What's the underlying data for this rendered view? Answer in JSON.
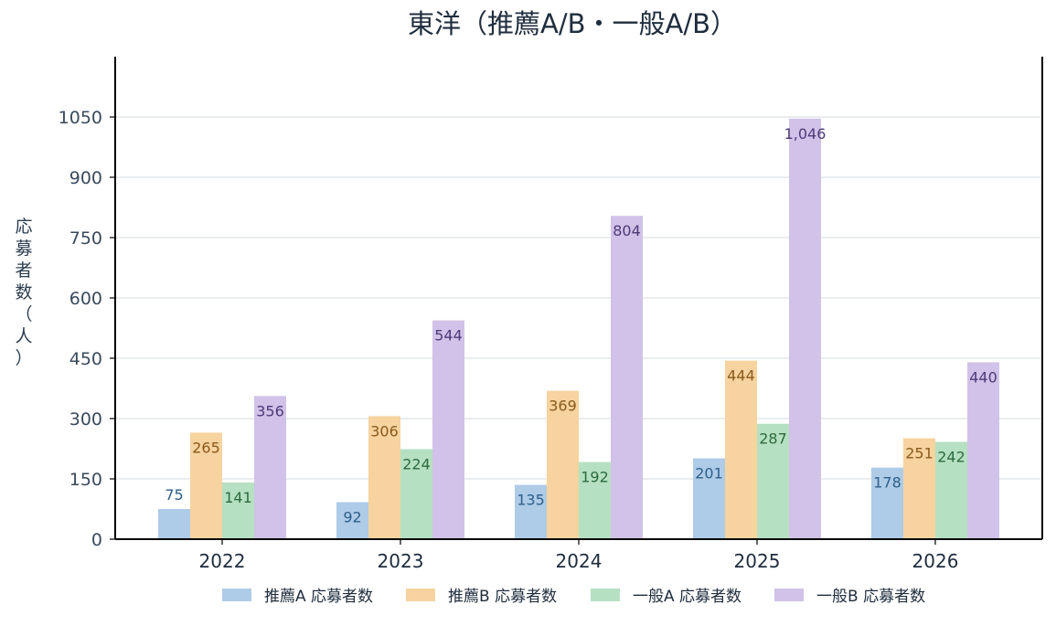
{
  "chart_data": {
    "type": "bar",
    "title": "東洋（推薦A/B・一般A/B）",
    "xlabel": "",
    "ylabel": "応募者数（人）",
    "categories": [
      "2022",
      "2023",
      "2024",
      "2025",
      "2026"
    ],
    "ylim": [
      0,
      1200
    ],
    "yticks": [
      0,
      150,
      300,
      450,
      600,
      750,
      900,
      1050
    ],
    "grid": true,
    "legend_position": "bottom",
    "series": [
      {
        "name": "推薦A 応募者数",
        "values": [
          75,
          92,
          135,
          201,
          178
        ],
        "labels": [
          "75",
          "92",
          "135",
          "201",
          "178"
        ],
        "color": "#aecbe8",
        "label_color": "#2e5f88"
      },
      {
        "name": "推薦B 応募者数",
        "values": [
          265,
          306,
          369,
          444,
          251
        ],
        "labels": [
          "265",
          "306",
          "369",
          "444",
          "251"
        ],
        "color": "#f6d39f",
        "label_color": "#8a5a1c"
      },
      {
        "name": "一般A 応募者数",
        "values": [
          141,
          224,
          192,
          287,
          242
        ],
        "labels": [
          "141",
          "224",
          "192",
          "287",
          "242"
        ],
        "color": "#b6e0c2",
        "label_color": "#2d6a3e"
      },
      {
        "name": "一般B 応募者数",
        "values": [
          356,
          544,
          804,
          1046,
          440
        ],
        "labels": [
          "356",
          "544",
          "804",
          "1,046",
          "440"
        ],
        "color": "#d0c2e8",
        "label_color": "#4d3a78"
      }
    ]
  }
}
